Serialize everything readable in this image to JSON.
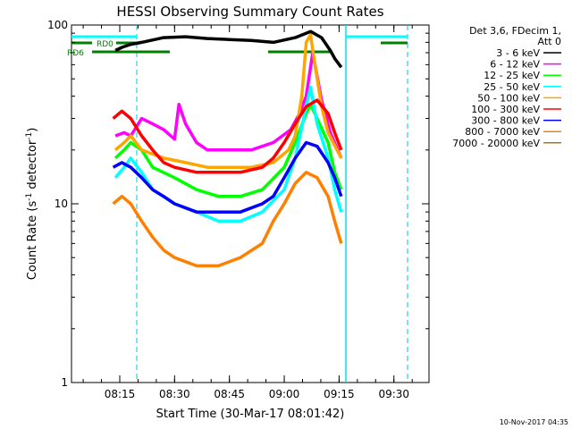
{
  "chart_data": {
    "type": "line",
    "title": "HESSI Observing Summary Count Rates",
    "xlabel": "Start Time (30-Mar-17 08:01:42)",
    "ylabel": "Count Rate (s",
    "ylabel_sup": "-1",
    "ylabel_tail": " detector",
    "ylabel_sup2": "-1",
    "ylabel_end": ")",
    "yscale": "log",
    "xlim": [
      8.03,
      9.66
    ],
    "ylim": [
      1,
      100
    ],
    "xticks": [
      {
        "v": 8.25,
        "label": "08:15"
      },
      {
        "v": 8.5,
        "label": "08:30"
      },
      {
        "v": 8.75,
        "label": "08:45"
      },
      {
        "v": 9.0,
        "label": "09:00"
      },
      {
        "v": 9.25,
        "label": "09:15"
      },
      {
        "v": 9.5,
        "label": "09:30"
      }
    ],
    "yticks": [
      {
        "v": 1,
        "label": "1"
      },
      {
        "v": 10,
        "label": "10"
      },
      {
        "v": 100,
        "label": "100"
      }
    ],
    "legend": {
      "header1": "Det 3,6, FDecim 1,",
      "header2": "Att 0",
      "position": "top-right, outside plot"
    },
    "series": [
      {
        "name": "3 - 6 keV",
        "color": "#000000",
        "x": [
          8.23,
          8.26,
          8.3,
          8.35,
          8.45,
          8.55,
          8.65,
          8.75,
          8.85,
          8.95,
          9.05,
          9.12,
          9.17,
          9.21,
          9.23,
          9.26
        ],
        "y": [
          72,
          75,
          78,
          80,
          85,
          86,
          84,
          83,
          82,
          80,
          85,
          92,
          85,
          72,
          65,
          58
        ]
      },
      {
        "name": "6 - 12 keV",
        "color": "#ff00ff",
        "x": [
          8.23,
          8.27,
          8.3,
          8.35,
          8.4,
          8.45,
          8.5,
          8.52,
          8.55,
          8.6,
          8.65,
          8.75,
          8.85,
          8.95,
          9.03,
          9.07,
          9.1,
          9.13,
          9.17,
          9.21,
          9.26
        ],
        "y": [
          24,
          25,
          24,
          30,
          28,
          26,
          23,
          36,
          28,
          22,
          20,
          20,
          20,
          22,
          26,
          32,
          40,
          70,
          38,
          25,
          18
        ]
      },
      {
        "name": "12 - 25 keV",
        "color": "#00ff00",
        "x": [
          8.23,
          8.27,
          8.3,
          8.35,
          8.4,
          8.5,
          8.6,
          8.7,
          8.8,
          8.9,
          9.0,
          9.05,
          9.1,
          9.12,
          9.15,
          9.2,
          9.23,
          9.26
        ],
        "y": [
          18,
          20,
          22,
          20,
          16,
          14,
          12,
          11,
          11,
          12,
          16,
          22,
          32,
          36,
          30,
          22,
          15,
          12
        ]
      },
      {
        "name": "25 - 50 keV",
        "color": "#00ffff",
        "x": [
          8.23,
          8.27,
          8.3,
          8.35,
          8.4,
          8.5,
          8.6,
          8.7,
          8.8,
          8.9,
          9.0,
          9.05,
          9.1,
          9.12,
          9.15,
          9.2,
          9.23,
          9.26
        ],
        "y": [
          14,
          16,
          18,
          15,
          12,
          10,
          9,
          8,
          8,
          9,
          12,
          18,
          35,
          45,
          28,
          18,
          12,
          9
        ]
      },
      {
        "name": "50 - 100 keV",
        "color": "#ffa500",
        "x": [
          8.23,
          8.27,
          8.3,
          8.35,
          8.45,
          8.55,
          8.65,
          8.75,
          8.85,
          8.95,
          9.02,
          9.05,
          9.08,
          9.1,
          9.12,
          9.14,
          9.17,
          9.2,
          9.26
        ],
        "y": [
          20,
          22,
          24,
          20,
          18,
          17,
          16,
          16,
          16,
          17,
          20,
          24,
          40,
          80,
          88,
          60,
          35,
          25,
          18
        ]
      },
      {
        "name": "100 - 300 keV",
        "color": "#ff0000",
        "x": [
          8.22,
          8.26,
          8.3,
          8.35,
          8.4,
          8.45,
          8.5,
          8.6,
          8.7,
          8.8,
          8.9,
          8.95,
          9.0,
          9.05,
          9.1,
          9.15,
          9.2,
          9.23,
          9.26
        ],
        "y": [
          30,
          33,
          30,
          24,
          20,
          17,
          16,
          15,
          15,
          15,
          16,
          18,
          22,
          28,
          35,
          38,
          32,
          25,
          20
        ]
      },
      {
        "name": "300 - 800 keV",
        "color": "#0000ff",
        "x": [
          8.22,
          8.26,
          8.3,
          8.35,
          8.4,
          8.45,
          8.5,
          8.6,
          8.7,
          8.8,
          8.9,
          8.95,
          9.0,
          9.05,
          9.1,
          9.15,
          9.2,
          9.23,
          9.26
        ],
        "y": [
          16,
          17,
          16,
          14,
          12,
          11,
          10,
          9,
          9,
          9,
          10,
          11,
          14,
          18,
          22,
          21,
          17,
          14,
          11
        ]
      },
      {
        "name": "800 - 7000 keV",
        "color": "#ff8000",
        "x": [
          8.22,
          8.26,
          8.3,
          8.35,
          8.4,
          8.45,
          8.5,
          8.6,
          8.7,
          8.8,
          8.9,
          8.95,
          9.0,
          9.05,
          9.1,
          9.15,
          9.2,
          9.23,
          9.26
        ],
        "y": [
          10,
          11,
          10,
          8,
          6.5,
          5.5,
          5,
          4.5,
          4.5,
          5,
          6,
          8,
          10,
          13,
          15,
          14,
          11,
          8,
          6
        ]
      },
      {
        "name": "7000 - 20000 keV",
        "color": "#a07820",
        "x": [],
        "y": []
      }
    ],
    "attenuator_labels": [
      {
        "text": "RD0",
        "color": "#008000"
      },
      {
        "text": "RD6",
        "color": "#008000"
      }
    ],
    "footer": "10-Nov-2017 04:35"
  }
}
